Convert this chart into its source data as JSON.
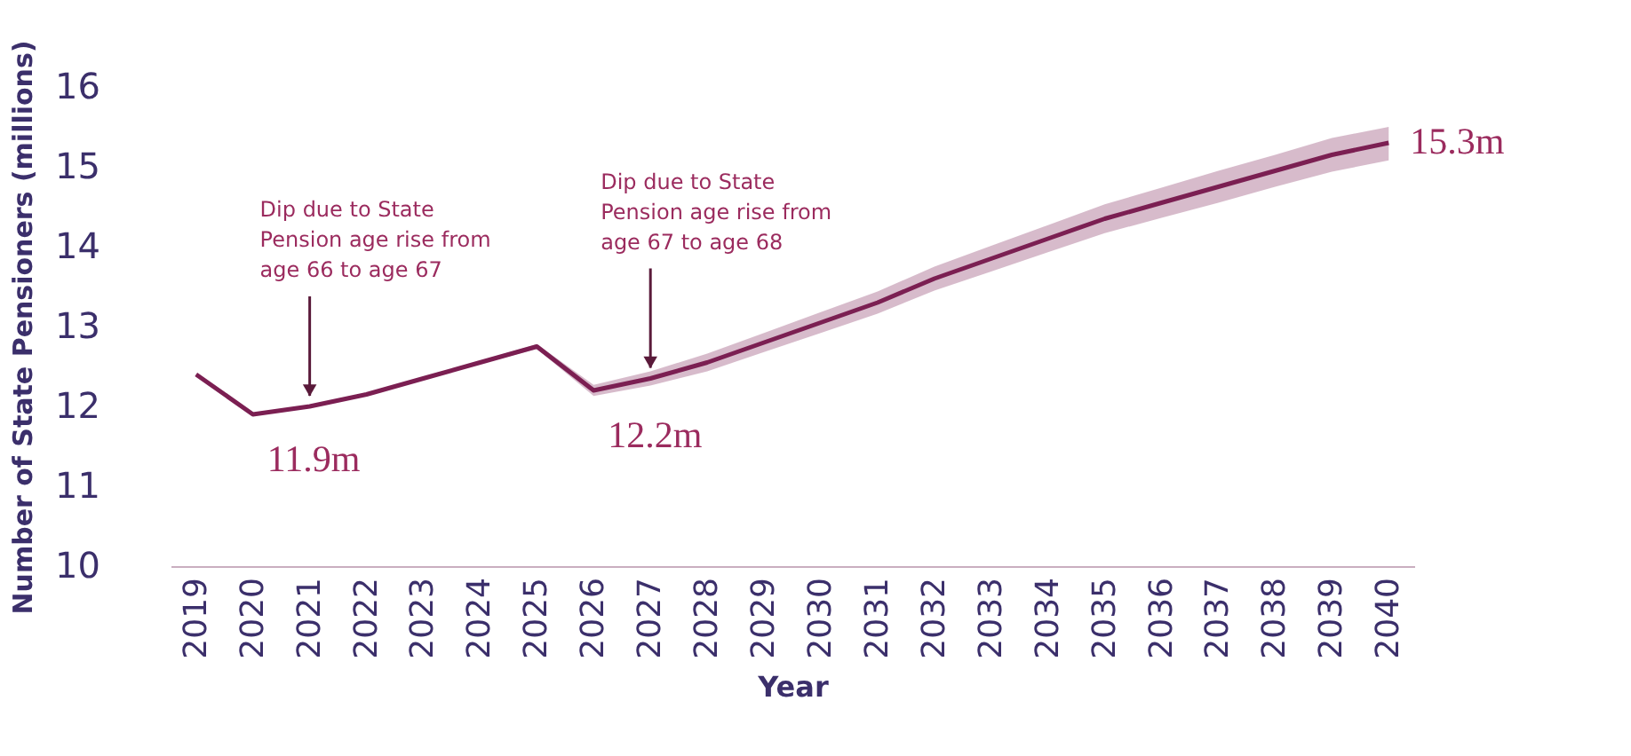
{
  "chart_data": {
    "type": "line",
    "xlabel": "Year",
    "ylabel": "Number of State Pensioners (millions)",
    "categories": [
      "2019",
      "2020",
      "2021",
      "2022",
      "2023",
      "2024",
      "2025",
      "2026",
      "2027",
      "2028",
      "2029",
      "2030",
      "2031",
      "2032",
      "2033",
      "2034",
      "2035",
      "2036",
      "2037",
      "2038",
      "2039",
      "2040"
    ],
    "series": [
      {
        "color": "#7b1f52",
        "values": [
          12.4,
          11.9,
          12.0,
          12.15,
          12.35,
          12.55,
          12.75,
          12.2,
          12.35,
          12.55,
          12.8,
          13.05,
          13.3,
          13.6,
          13.85,
          14.1,
          14.35,
          14.55,
          14.75,
          14.95,
          15.15,
          15.3
        ],
        "lower": [
          12.38,
          11.88,
          11.98,
          12.13,
          12.33,
          12.53,
          12.72,
          12.13,
          12.26,
          12.44,
          12.68,
          12.92,
          13.16,
          13.45,
          13.69,
          13.93,
          14.17,
          14.36,
          14.55,
          14.75,
          14.94,
          15.08
        ],
        "upper": [
          12.42,
          11.92,
          12.02,
          12.17,
          12.37,
          12.57,
          12.78,
          12.27,
          12.44,
          12.66,
          12.92,
          13.18,
          13.44,
          13.75,
          14.01,
          14.27,
          14.53,
          14.74,
          14.95,
          15.15,
          15.36,
          15.5
        ]
      }
    ],
    "ylim": [
      10,
      16
    ],
    "yticks": [
      10,
      11,
      12,
      13,
      14,
      15,
      16
    ],
    "grid": false,
    "line_style": "solid",
    "annotations": [
      {
        "text": "Dip due to State Pension age rise from age 66 to age 67",
        "x": "2021",
        "y": 12.0
      },
      {
        "text": "Dip due to State Pension age rise from age 67 to age 68",
        "x": "2027",
        "y": 12.35
      },
      {
        "text": "11.9m",
        "x": "2020",
        "y": 11.9
      },
      {
        "text": "12.2m",
        "x": "2026",
        "y": 12.2
      },
      {
        "text": "15.3m",
        "x": "2040",
        "y": 15.3
      }
    ]
  }
}
